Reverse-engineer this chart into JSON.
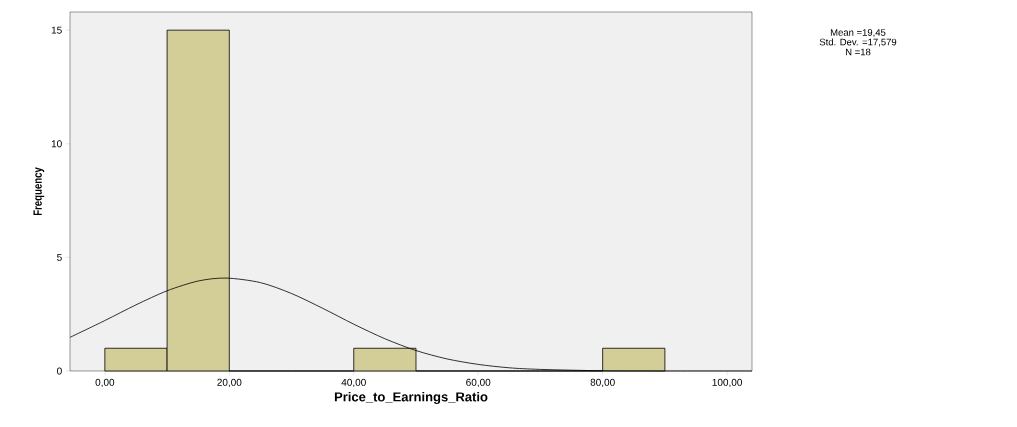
{
  "chart_data": {
    "type": "histogram",
    "xlabel": "Price_to_Earnings_Ratio",
    "ylabel": "Frequency",
    "annotations": [
      "Mean =19,45",
      "Std. Dev. =17,579",
      "N =18"
    ],
    "xlim": [
      -5.6,
      104
    ],
    "ylim": [
      0,
      15.8
    ],
    "xticks": [
      {
        "value": 0,
        "label": "0,00"
      },
      {
        "value": 20,
        "label": "20,00"
      },
      {
        "value": 40,
        "label": "40,00"
      },
      {
        "value": 60,
        "label": "60,00"
      },
      {
        "value": 80,
        "label": "80,00"
      },
      {
        "value": 100,
        "label": "100,00"
      }
    ],
    "yticks": [
      0,
      5,
      10,
      15
    ],
    "grid": false,
    "series": [
      {
        "color": "#d3ce97",
        "bins": [
          0,
          10,
          20,
          30,
          40,
          50,
          60,
          70,
          80,
          90
        ],
        "values": [
          1,
          15,
          0,
          0,
          1,
          0,
          0,
          0,
          1
        ]
      },
      {
        "type": "line",
        "color": "#000000",
        "marker": "none",
        "x": [
          -5.6,
          0,
          5,
          10,
          15,
          19.45,
          25,
          30,
          35,
          40,
          45,
          50,
          55,
          60,
          65,
          70,
          80,
          90,
          104
        ],
        "values": [
          1.48,
          2.22,
          2.91,
          3.53,
          3.96,
          4.09,
          3.89,
          3.41,
          2.76,
          2.06,
          1.42,
          0.9,
          0.53,
          0.29,
          0.14,
          0.07,
          0.01,
          0,
          0
        ]
      }
    ]
  }
}
